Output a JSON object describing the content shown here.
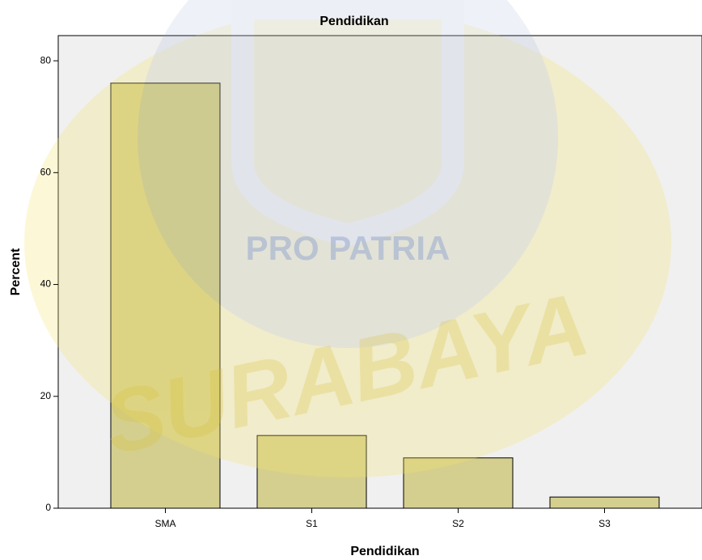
{
  "chart_data": {
    "type": "bar",
    "title": "Pendidikan",
    "x_label": "Pendidikan",
    "y_label": "Percent",
    "categories": [
      "SMA",
      "S1",
      "S2",
      "S3"
    ],
    "values": [
      76,
      13,
      9,
      2
    ],
    "color": "#d4cf8e",
    "ylim": [
      0,
      84.5
    ],
    "yticks": [
      0,
      20,
      40,
      60,
      80
    ],
    "grid": false
  },
  "watermark": {
    "texts": [
      "PRO PATRIA",
      "SURABAYA"
    ]
  }
}
